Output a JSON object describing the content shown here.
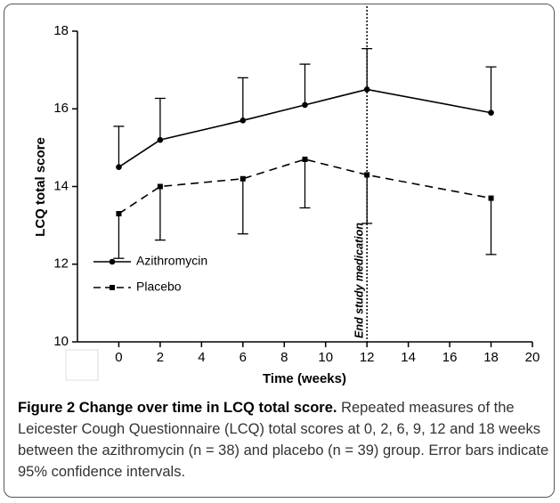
{
  "chart_data": {
    "type": "line",
    "y_label": "LCQ total score",
    "x_label": "Time (weeks)",
    "x": [
      0,
      2,
      6,
      9,
      12,
      18
    ],
    "series": [
      {
        "name": "Azithromycin",
        "color": "#000000",
        "marker": "circle",
        "dash": false,
        "error_direction": "up",
        "values": [
          14.5,
          15.2,
          15.7,
          16.1,
          16.5,
          15.9
        ],
        "errors": [
          1.05,
          1.07,
          1.1,
          1.05,
          1.05,
          1.18
        ]
      },
      {
        "name": "Placebo",
        "color": "#000000",
        "marker": "square",
        "dash": true,
        "error_direction": "down",
        "values": [
          13.3,
          14.0,
          14.2,
          14.7,
          14.3,
          13.7
        ],
        "errors": [
          1.15,
          1.38,
          1.42,
          1.25,
          1.25,
          1.45
        ]
      }
    ],
    "xlim": [
      -2,
      20
    ],
    "xticks": [
      0,
      2,
      4,
      6,
      8,
      10,
      12,
      14,
      16,
      18,
      20
    ],
    "ylim": [
      10,
      18
    ],
    "yticks": [
      10,
      12,
      14,
      16,
      18
    ],
    "vline": {
      "x": 12,
      "label": "End study medication"
    },
    "legend": "left"
  },
  "caption": {
    "title": "Figure 2 Change over time in LCQ total score.",
    "text": "Repeated measures of the Leicester Cough Questionnaire (LCQ) total scores at 0, 2, 6, 9, 12 and 18 weeks between the azithromycin (n = 38) and placebo (n = 39) group. Error bars indicate 95% confidence intervals."
  }
}
